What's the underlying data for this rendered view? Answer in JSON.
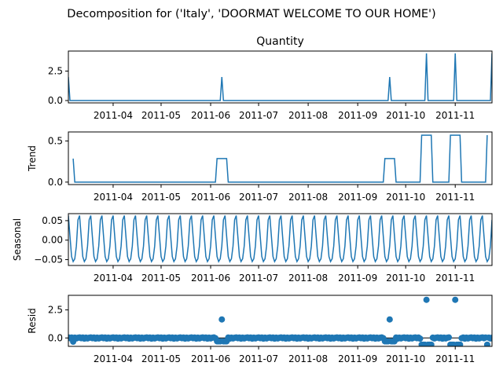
{
  "chart_data": {
    "type": "line",
    "title": "Decomposition for ('Italy', 'DOORMAT WELCOME TO OUR HOME')",
    "x_tick_labels": [
      "2011-04",
      "2011-05",
      "2011-06",
      "2011-07",
      "2011-08",
      "2011-09",
      "2011-10",
      "2011-11"
    ],
    "x_range": [
      "2011-03-04",
      "2011-11-24"
    ],
    "panels": [
      {
        "name": "observed",
        "title": "Quantity",
        "ylabel": "",
        "kind": "line",
        "ylim": [
          -0.2,
          4.2
        ],
        "yticks": [
          0.0,
          2.5
        ],
        "ytick_labels": [
          "0.0",
          "2.5"
        ],
        "baseline": 0,
        "points": [
          {
            "x": "2011-03-04",
            "y": 2
          },
          {
            "x": "2011-03-05",
            "y": 0
          },
          {
            "x": "2011-06-07",
            "y": 0
          },
          {
            "x": "2011-06-08",
            "y": 2
          },
          {
            "x": "2011-06-09",
            "y": 0
          },
          {
            "x": "2011-09-20",
            "y": 0
          },
          {
            "x": "2011-09-21",
            "y": 2
          },
          {
            "x": "2011-09-22",
            "y": 0
          },
          {
            "x": "2011-10-13",
            "y": 0
          },
          {
            "x": "2011-10-14",
            "y": 4
          },
          {
            "x": "2011-10-15",
            "y": 0
          },
          {
            "x": "2011-10-31",
            "y": 0
          },
          {
            "x": "2011-11-01",
            "y": 4
          },
          {
            "x": "2011-11-02",
            "y": 0
          },
          {
            "x": "2011-11-23",
            "y": 0
          },
          {
            "x": "2011-11-24",
            "y": 4
          }
        ]
      },
      {
        "name": "trend",
        "title": "",
        "ylabel": "Trend",
        "kind": "line",
        "ylim": [
          -0.03,
          0.61
        ],
        "yticks": [
          0.0,
          0.5
        ],
        "ytick_labels": [
          "0.0",
          "0.5"
        ],
        "points": [
          {
            "x": "2011-03-07",
            "y": 0.286
          },
          {
            "x": "2011-03-08",
            "y": 0
          },
          {
            "x": "2011-06-04",
            "y": 0
          },
          {
            "x": "2011-06-05",
            "y": 0.286
          },
          {
            "x": "2011-06-11",
            "y": 0.286
          },
          {
            "x": "2011-06-12",
            "y": 0
          },
          {
            "x": "2011-09-17",
            "y": 0
          },
          {
            "x": "2011-09-18",
            "y": 0.286
          },
          {
            "x": "2011-09-24",
            "y": 0.286
          },
          {
            "x": "2011-09-25",
            "y": 0
          },
          {
            "x": "2011-10-10",
            "y": 0
          },
          {
            "x": "2011-10-11",
            "y": 0.571
          },
          {
            "x": "2011-10-17",
            "y": 0.571
          },
          {
            "x": "2011-10-18",
            "y": 0
          },
          {
            "x": "2011-10-28",
            "y": 0
          },
          {
            "x": "2011-10-29",
            "y": 0.571
          },
          {
            "x": "2011-11-04",
            "y": 0.571
          },
          {
            "x": "2011-11-05",
            "y": 0
          },
          {
            "x": "2011-11-20",
            "y": 0
          },
          {
            "x": "2011-11-21",
            "y": 0.571
          }
        ]
      },
      {
        "name": "seasonal",
        "title": "",
        "ylabel": "Seasonal",
        "kind": "seasonal",
        "ylim": [
          -0.065,
          0.068
        ],
        "yticks": [
          -0.05,
          0.0,
          0.05
        ],
        "ytick_labels": [
          "−0.05",
          "0.00",
          "0.05"
        ],
        "period_days": 7,
        "pattern": [
          0.063,
          0.01,
          -0.042,
          -0.055,
          -0.048,
          -0.015,
          0.052
        ]
      },
      {
        "name": "resid",
        "title": "",
        "ylabel": "Resid",
        "kind": "scatter",
        "ylim": [
          -0.75,
          3.8
        ],
        "yticks": [
          0.0,
          2.5
        ],
        "ytick_labels": [
          "0.0",
          "2.5"
        ],
        "baseline": 0,
        "base_pattern": [
          0.05,
          -0.02,
          0.04,
          -0.06,
          0.03,
          -0.04,
          0.02
        ],
        "spikes": [
          {
            "x": "2011-03-07",
            "y": -0.33
          },
          {
            "x": "2011-06-05",
            "y": -0.3
          },
          {
            "x": "2011-06-06",
            "y": -0.3
          },
          {
            "x": "2011-06-07",
            "y": -0.3
          },
          {
            "x": "2011-06-08",
            "y": 1.65
          },
          {
            "x": "2011-06-09",
            "y": -0.3
          },
          {
            "x": "2011-06-10",
            "y": -0.3
          },
          {
            "x": "2011-06-11",
            "y": -0.3
          },
          {
            "x": "2011-09-18",
            "y": -0.3
          },
          {
            "x": "2011-09-19",
            "y": -0.3
          },
          {
            "x": "2011-09-20",
            "y": -0.3
          },
          {
            "x": "2011-09-21",
            "y": 1.65
          },
          {
            "x": "2011-09-22",
            "y": -0.3
          },
          {
            "x": "2011-09-23",
            "y": -0.3
          },
          {
            "x": "2011-09-24",
            "y": -0.3
          },
          {
            "x": "2011-10-11",
            "y": -0.6
          },
          {
            "x": "2011-10-12",
            "y": -0.6
          },
          {
            "x": "2011-10-13",
            "y": -0.6
          },
          {
            "x": "2011-10-14",
            "y": 3.4
          },
          {
            "x": "2011-10-15",
            "y": -0.6
          },
          {
            "x": "2011-10-16",
            "y": -0.6
          },
          {
            "x": "2011-10-17",
            "y": -0.6
          },
          {
            "x": "2011-10-29",
            "y": -0.6
          },
          {
            "x": "2011-10-30",
            "y": -0.6
          },
          {
            "x": "2011-10-31",
            "y": -0.6
          },
          {
            "x": "2011-11-01",
            "y": 3.4
          },
          {
            "x": "2011-11-02",
            "y": -0.6
          },
          {
            "x": "2011-11-03",
            "y": -0.6
          },
          {
            "x": "2011-11-04",
            "y": -0.6
          },
          {
            "x": "2011-11-21",
            "y": -0.6
          }
        ]
      }
    ],
    "colors": {
      "line": "#1f77b4",
      "marker": "#1f77b4",
      "baseline": "#000000"
    },
    "grid": false,
    "legend": "none"
  }
}
